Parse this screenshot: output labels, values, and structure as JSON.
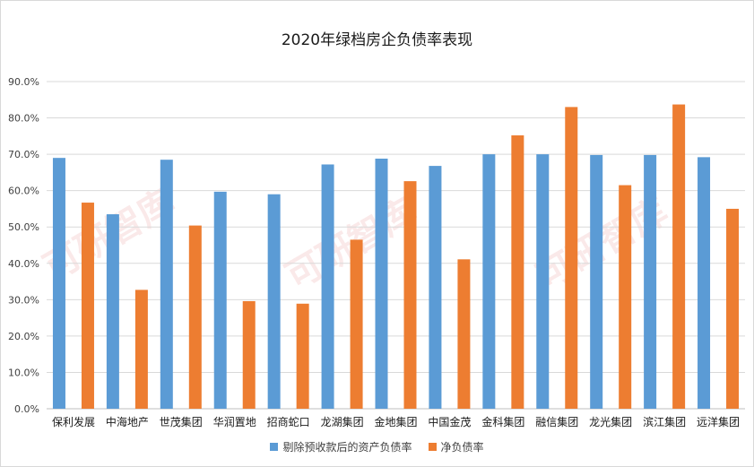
{
  "chart_data": {
    "type": "bar",
    "title": "2020年绿档房企负债率表现",
    "categories": [
      "保利发展",
      "中海地产",
      "世茂集团",
      "华润置地",
      "招商蛇口",
      "龙湖集团",
      "金地集团",
      "中国金茂",
      "金科集团",
      "融信集团",
      "龙光集团",
      "滨江集团",
      "远洋集团"
    ],
    "series": [
      {
        "name": "剔除预收款后的资产负债率",
        "color": "#5b9bd5",
        "values": [
          69.0,
          53.5,
          68.5,
          59.7,
          59.0,
          67.2,
          68.8,
          66.8,
          70.0,
          70.0,
          69.8,
          69.8,
          69.2
        ]
      },
      {
        "name": "净负债率",
        "color": "#ed7d31",
        "values": [
          56.7,
          32.7,
          50.4,
          29.6,
          28.9,
          46.5,
          62.6,
          41.1,
          75.2,
          83.0,
          61.5,
          83.7,
          55.0
        ]
      }
    ],
    "ylim": [
      0,
      90
    ],
    "yticks": [
      "0.0%",
      "10.0%",
      "20.0%",
      "30.0%",
      "40.0%",
      "50.0%",
      "60.0%",
      "70.0%",
      "80.0%",
      "90.0%"
    ],
    "grid": true,
    "legend_position": "bottom"
  },
  "watermark": "可研智库"
}
